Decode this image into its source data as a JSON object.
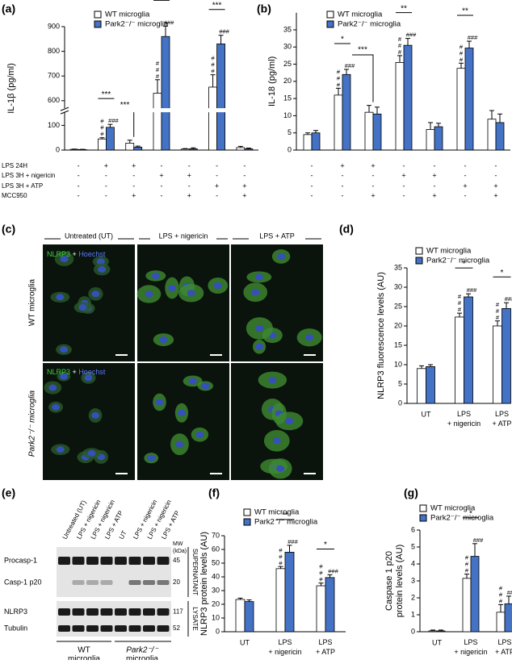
{
  "chart_data": [
    {
      "type": "bar",
      "panel": "(a)",
      "ylabel": "IL-1β (pg/ml)",
      "categories": [
        null,
        null,
        null,
        null,
        null,
        null,
        null
      ],
      "series": [
        {
          "name": "WT microglia",
          "color": "#ffffff",
          "values": [
            3,
            45,
            28,
            630,
            4,
            655,
            10
          ],
          "errors": [
            1,
            5,
            12,
            55,
            2,
            50,
            5
          ],
          "labels": [
            null,
            "###",
            null,
            "###",
            null,
            "###",
            null
          ]
        },
        {
          "name": "Park2⁻/⁻ microglia",
          "color": "#4472c4",
          "values": [
            2,
            92,
            12,
            860,
            5,
            830,
            5
          ],
          "errors": [
            1,
            12,
            4,
            42,
            4,
            35,
            3
          ],
          "labels": [
            null,
            "###",
            null,
            "###",
            null,
            "###",
            null
          ]
        }
      ],
      "ylim": [
        0,
        900
      ],
      "ybreak": [
        150,
        550
      ],
      "yticks": [
        0,
        100,
        600,
        700,
        800,
        900
      ],
      "pair_marks": [
        null,
        "***",
        null,
        "***",
        null,
        "***",
        null
      ],
      "brackets": [
        {
          "text": "***",
          "from": 1,
          "to": 2
        }
      ],
      "conditions": [
        {
          "label": "LPS 24H",
          "signs": [
            "-",
            "+",
            "+",
            "-",
            "-",
            "-",
            "-"
          ]
        },
        {
          "label": "LPS 3H + nigericin",
          "signs": [
            "-",
            "-",
            "-",
            "+",
            "+",
            "-",
            "-"
          ]
        },
        {
          "label": "LPS 3H + ATP",
          "signs": [
            "-",
            "-",
            "-",
            "-",
            "-",
            "+",
            "+"
          ]
        },
        {
          "label": "MCC950",
          "signs": [
            "-",
            "-",
            "+",
            "-",
            "+",
            "-",
            "+"
          ]
        }
      ]
    },
    {
      "type": "bar",
      "panel": "(b)",
      "ylabel": "IL-18 (pg/ml)",
      "categories": [
        null,
        null,
        null,
        null,
        null,
        null,
        null
      ],
      "series": [
        {
          "name": "WT microglia",
          "color": "#ffffff",
          "values": [
            4.5,
            16,
            11,
            25.5,
            6,
            23.8,
            9
          ],
          "errors": [
            0.5,
            2,
            2,
            2,
            2,
            1.5,
            2.5
          ],
          "labels": [
            null,
            "###",
            null,
            "###",
            null,
            "###",
            null
          ]
        },
        {
          "name": "Park2⁻/⁻ microglia",
          "color": "#4472c4",
          "values": [
            5,
            22,
            10.5,
            30.5,
            6.8,
            29.7,
            8
          ],
          "errors": [
            0.7,
            1.5,
            2,
            2,
            1,
            2,
            2.5
          ],
          "labels": [
            null,
            "###",
            null,
            "###",
            null,
            "###",
            null
          ]
        }
      ],
      "ylim": [
        0,
        40
      ],
      "yticks": [
        0,
        5,
        10,
        15,
        20,
        25,
        30,
        35
      ],
      "pair_marks": [
        null,
        "*",
        null,
        "**",
        null,
        "**",
        null
      ],
      "brackets": [
        {
          "text": "***",
          "from": 1,
          "to": 2
        }
      ],
      "conditions": [
        {
          "signs": [
            "-",
            "+",
            "+",
            "-",
            "-",
            "-",
            "-"
          ]
        },
        {
          "signs": [
            "-",
            "-",
            "-",
            "+",
            "+",
            "-",
            "-"
          ]
        },
        {
          "signs": [
            "-",
            "-",
            "-",
            "-",
            "-",
            "+",
            "+"
          ]
        },
        {
          "signs": [
            "-",
            "-",
            "+",
            "-",
            "+",
            "-",
            "+"
          ]
        }
      ]
    },
    {
      "type": "bar",
      "panel": "(d)",
      "ylabel": "NLRP3 fluorescence levels (AU)",
      "categories": [
        "UT",
        "LPS + nigericin",
        "LPS + ATP"
      ],
      "series": [
        {
          "name": "WT microglia",
          "color": "#ffffff",
          "values": [
            9,
            22.3,
            20
          ],
          "errors": [
            0.7,
            1,
            1.3
          ],
          "labels": [
            null,
            "###",
            "###"
          ]
        },
        {
          "name": "Park2⁻/⁻ microglia",
          "color": "#4472c4",
          "values": [
            9.5,
            27.5,
            24.5
          ],
          "errors": [
            0.5,
            0.8,
            1.5
          ],
          "labels": [
            null,
            "###",
            "###"
          ]
        }
      ],
      "ylim": [
        0,
        35
      ],
      "yticks": [
        0,
        5,
        10,
        15,
        20,
        25,
        30,
        35
      ],
      "pair_marks": [
        null,
        "*",
        "*"
      ]
    },
    {
      "type": "bar",
      "panel": "(f)",
      "ylabel": "NLRP3 protein levels (AU)",
      "categories": [
        "UT",
        "LPS + nigericin",
        "LPS + ATP"
      ],
      "series": [
        {
          "name": "WT microglia",
          "color": "#ffffff",
          "values": [
            23.5,
            46,
            33.5
          ],
          "errors": [
            1,
            1.5,
            2
          ],
          "labels": [
            null,
            "###",
            "###"
          ]
        },
        {
          "name": "Park2⁻/⁻ microglia",
          "color": "#4472c4",
          "values": [
            22,
            58,
            39.5
          ],
          "errors": [
            1.2,
            5,
            2
          ],
          "labels": [
            null,
            "###",
            "###"
          ]
        }
      ],
      "ylim": [
        0,
        70
      ],
      "yticks": [
        0,
        10,
        20,
        30,
        40,
        50,
        60,
        70
      ],
      "pair_marks": [
        null,
        "**",
        "*"
      ]
    },
    {
      "type": "bar",
      "panel": "(g)",
      "ylabel": [
        "Caspase 1 p20",
        "protein levels (AU)"
      ],
      "categories": [
        "UT",
        "LPS + nigericin",
        "LPS + ATP"
      ],
      "series": [
        {
          "name": "WT microglia",
          "color": "#ffffff",
          "values": [
            0.05,
            3.15,
            1.15
          ],
          "errors": [
            0.05,
            0.25,
            0.45
          ],
          "labels": [
            null,
            "###",
            "###"
          ]
        },
        {
          "name": "Park2⁻/⁻ microglia",
          "color": "#4472c4",
          "values": [
            0.05,
            4.45,
            1.65
          ],
          "errors": [
            0.05,
            0.75,
            0.45
          ],
          "labels": [
            null,
            "###",
            "###"
          ]
        }
      ],
      "ylim": [
        0,
        6
      ],
      "yticks": [
        0,
        1,
        2,
        3,
        4,
        5,
        6
      ],
      "pair_marks": [
        null,
        "*",
        null
      ]
    }
  ],
  "microscopy": {
    "panel": "(c)",
    "columns": [
      "Untreated (UT)",
      "LPS + nigericin",
      "LPS + ATP"
    ],
    "rows": [
      "WT microglia",
      "Park2⁻/⁻ microglia"
    ],
    "stain": [
      "NLRP3",
      "+",
      "Hoechst"
    ]
  },
  "blot": {
    "panel": "(e)",
    "lanes": [
      "Untreated (UT)",
      "LPS + nigericin",
      "LPS + nigericin",
      "LPS + ATP",
      "UT",
      "LPS + nigericin",
      "LPS + nigericin",
      "LPS + ATP"
    ],
    "bands": [
      {
        "name": "Procasp-1",
        "mw": 45
      },
      {
        "name": "Casp-1 p20",
        "mw": 20
      },
      {
        "name": "NLRP3",
        "mw": 117
      },
      {
        "name": "Tubulin",
        "mw": 52
      }
    ],
    "mw_header": [
      "MW",
      "(kDa)"
    ],
    "fractions": [
      "SUPERNATANT",
      "LYSATE"
    ],
    "groups": [
      [
        "WT",
        "microglia"
      ],
      [
        "Park2⁻/⁻",
        "microglia"
      ]
    ]
  }
}
